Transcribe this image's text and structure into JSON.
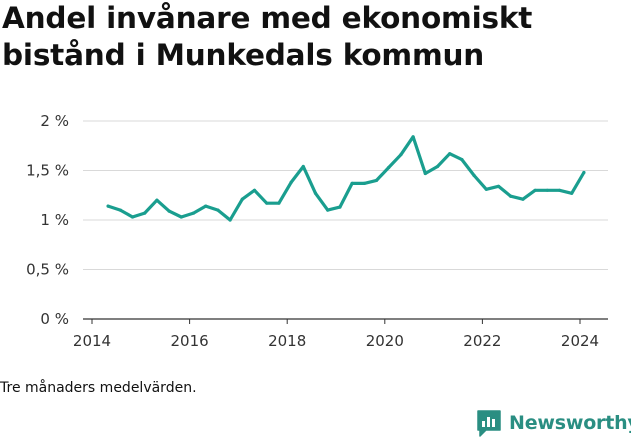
{
  "header": {
    "title_line1": "Andel invånare med ekonomiskt",
    "title_line2": "bistånd i Munkedals kommun"
  },
  "footer": {
    "note": "Tre månaders medelvärden.",
    "brand": "Newsworthy",
    "brand_icon": "bar-chart-speech-bubble-icon"
  },
  "colors": {
    "line": "#1a9e8f",
    "grid": "#d9d9d9",
    "axis": "#333333",
    "brand": "#2a8e82"
  },
  "chart_data": {
    "type": "line",
    "title": "Andel invånare med ekonomiskt bistånd i Munkedals kommun",
    "xlabel": "",
    "ylabel": "",
    "xlim": [
      2014,
      2024.6
    ],
    "ylim": [
      0,
      2
    ],
    "grid": true,
    "legend": "none",
    "x_ticks": [
      2014,
      2016,
      2018,
      2020,
      2022,
      2024
    ],
    "x_tick_labels": [
      "2014",
      "2016",
      "2018",
      "2020",
      "2022",
      "2024"
    ],
    "y_ticks": [
      0,
      0.5,
      1,
      1.5,
      2
    ],
    "y_tick_labels": [
      "0 %",
      "0,5 %",
      "1 %",
      "1,5 %",
      "2 %"
    ],
    "series": [
      {
        "x": [
          2014.33,
          2014.58,
          2014.83,
          2015.08,
          2015.33,
          2015.58,
          2015.83,
          2016.08,
          2016.33,
          2016.58,
          2016.83,
          2017.08,
          2017.33,
          2017.58,
          2017.83,
          2018.08,
          2018.33,
          2018.58,
          2018.83,
          2019.08,
          2019.33,
          2019.58,
          2019.83,
          2020.08,
          2020.33,
          2020.58,
          2020.83,
          2021.08,
          2021.33,
          2021.58,
          2021.83,
          2022.08,
          2022.33,
          2022.58,
          2022.83,
          2023.08,
          2023.33,
          2023.58,
          2023.83,
          2024.08
        ],
        "values": [
          1.14,
          1.1,
          1.03,
          1.07,
          1.2,
          1.09,
          1.03,
          1.07,
          1.14,
          1.1,
          1.0,
          1.21,
          1.3,
          1.17,
          1.17,
          1.38,
          1.54,
          1.27,
          1.1,
          1.13,
          1.37,
          1.37,
          1.4,
          1.53,
          1.66,
          1.84,
          1.47,
          1.54,
          1.67,
          1.61,
          1.45,
          1.31,
          1.34,
          1.24,
          1.21,
          1.3,
          1.3,
          1.3,
          1.27,
          1.48
        ]
      }
    ]
  }
}
